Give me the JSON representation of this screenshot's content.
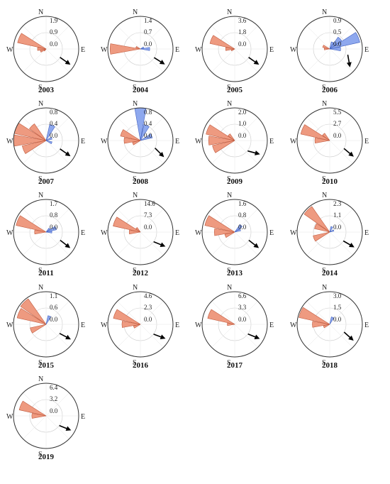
{
  "colors": {
    "west_petals": "#ee9a80",
    "west_stroke": "#c05a3e",
    "east_petals": "#8ea8ee",
    "east_stroke": "#4060c0",
    "arrow": "#000000",
    "circle": "#333333",
    "grid": "#cccccc"
  },
  "compass": {
    "n": "N",
    "s": "S",
    "e": "E",
    "w": "W"
  },
  "chart_data": [
    {
      "type": "polar-bar",
      "title": "2003",
      "r_ticks": [
        "1.9",
        "0.9",
        "0.0"
      ],
      "rmax": 1.9,
      "arrow_dir_deg": 125,
      "sectors": [
        {
          "dir": 292.5,
          "value": 1.7
        },
        {
          "dir": 270,
          "value": 0.5
        },
        {
          "dir": 247.5,
          "value": 0.35
        },
        {
          "dir": 225,
          "value": 0.15
        }
      ]
    },
    {
      "type": "polar-bar",
      "title": "2004",
      "r_ticks": [
        "1.4",
        "0.7",
        "0.0"
      ],
      "rmax": 1.4,
      "arrow_dir_deg": 122,
      "sectors": [
        {
          "dir": 270,
          "value": 1.3
        },
        {
          "dir": 292.5,
          "value": 0.2
        },
        {
          "dir": 90,
          "value": 0.4
        },
        {
          "dir": 67.5,
          "value": 0.15
        }
      ]
    },
    {
      "type": "polar-bar",
      "title": "2005",
      "r_ticks": [
        "3.6",
        "1.8",
        "0.0"
      ],
      "rmax": 3.6,
      "arrow_dir_deg": 125,
      "sectors": [
        {
          "dir": 292.5,
          "value": 2.8
        },
        {
          "dir": 270,
          "value": 1.0
        },
        {
          "dir": 247.5,
          "value": 0.4
        }
      ]
    },
    {
      "type": "polar-bar",
      "title": "2006",
      "r_ticks": [
        "0.9",
        "0.5",
        "0.0"
      ],
      "rmax": 0.9,
      "arrow_dir_deg": 170,
      "sectors": [
        {
          "dir": 67.5,
          "value": 0.85
        },
        {
          "dir": 45,
          "value": 0.4
        },
        {
          "dir": 22.5,
          "value": 0.2
        },
        {
          "dir": 90,
          "value": 0.3
        },
        {
          "dir": 292.5,
          "value": 0.2
        },
        {
          "dir": 270,
          "value": 0.15
        }
      ]
    },
    {
      "type": "polar-bar",
      "title": "2007",
      "r_ticks": [
        "0.8",
        "0.4",
        "0.0"
      ],
      "rmax": 0.8,
      "arrow_dir_deg": 125,
      "sectors": [
        {
          "dir": 292.5,
          "value": 0.8
        },
        {
          "dir": 270,
          "value": 0.8
        },
        {
          "dir": 247.5,
          "value": 0.6
        },
        {
          "dir": 315,
          "value": 0.5
        },
        {
          "dir": 22.5,
          "value": 0.4
        },
        {
          "dir": 67.5,
          "value": 0.15
        },
        {
          "dir": 112.5,
          "value": 0.15
        }
      ]
    },
    {
      "type": "polar-bar",
      "title": "2008",
      "r_ticks": [
        "0.8",
        "0.4",
        "0.0"
      ],
      "rmax": 0.8,
      "arrow_dir_deg": 135,
      "sectors": [
        {
          "dir": 0,
          "value": 0.85
        },
        {
          "dir": 22.5,
          "value": 0.4
        },
        {
          "dir": 67.5,
          "value": 0.3
        },
        {
          "dir": 292.5,
          "value": 0.5
        },
        {
          "dir": 270,
          "value": 0.4
        },
        {
          "dir": 247.5,
          "value": 0.2
        }
      ]
    },
    {
      "type": "polar-bar",
      "title": "2009",
      "r_ticks": [
        "2.0",
        "1.0",
        "0.0"
      ],
      "rmax": 2.0,
      "arrow_dir_deg": 105,
      "sectors": [
        {
          "dir": 292.5,
          "value": 1.8
        },
        {
          "dir": 270,
          "value": 1.6
        },
        {
          "dir": 247.5,
          "value": 1.4
        },
        {
          "dir": 315,
          "value": 0.5
        }
      ]
    },
    {
      "type": "polar-bar",
      "title": "2010",
      "r_ticks": [
        "5.5",
        "2.7",
        "0.0"
      ],
      "rmax": 5.5,
      "arrow_dir_deg": 130,
      "sectors": [
        {
          "dir": 292.5,
          "value": 5.0
        },
        {
          "dir": 270,
          "value": 2.5
        },
        {
          "dir": 315,
          "value": 1.5
        }
      ]
    },
    {
      "type": "polar-bar",
      "title": "2011",
      "r_ticks": [
        "1.7",
        "0.8",
        "0.0"
      ],
      "rmax": 1.7,
      "arrow_dir_deg": 128,
      "sectors": [
        {
          "dir": 292.5,
          "value": 1.6
        },
        {
          "dir": 270,
          "value": 0.6
        },
        {
          "dir": 67.5,
          "value": 0.55
        },
        {
          "dir": 45,
          "value": 0.25
        },
        {
          "dir": 90,
          "value": 0.3
        }
      ]
    },
    {
      "type": "polar-bar",
      "title": "2012",
      "r_ticks": [
        "14.6",
        "7.3",
        "0.0"
      ],
      "rmax": 14.6,
      "arrow_dir_deg": 112,
      "sectors": [
        {
          "dir": 292.5,
          "value": 12.5
        },
        {
          "dir": 270,
          "value": 5.0
        },
        {
          "dir": 315,
          "value": 2.5
        }
      ]
    },
    {
      "type": "polar-bar",
      "title": "2013",
      "r_ticks": [
        "1.6",
        "0.8",
        "0.0"
      ],
      "rmax": 1.6,
      "arrow_dir_deg": 128,
      "sectors": [
        {
          "dir": 292.5,
          "value": 1.5
        },
        {
          "dir": 270,
          "value": 1.0
        },
        {
          "dir": 247.5,
          "value": 0.5
        },
        {
          "dir": 45,
          "value": 0.45
        },
        {
          "dir": 67.5,
          "value": 0.3
        }
      ]
    },
    {
      "type": "polar-bar",
      "title": "2014",
      "r_ticks": [
        "2.3",
        "1.1",
        "0.0"
      ],
      "rmax": 2.3,
      "arrow_dir_deg": 120,
      "sectors": [
        {
          "dir": 315,
          "value": 2.2
        },
        {
          "dir": 292.5,
          "value": 1.1
        },
        {
          "dir": 247.5,
          "value": 1.2
        },
        {
          "dir": 22.5,
          "value": 0.4
        },
        {
          "dir": 67.5,
          "value": 0.3
        }
      ]
    },
    {
      "type": "polar-bar",
      "title": "2015",
      "r_ticks": [
        "1.1",
        "0.6",
        "0.0"
      ],
      "rmax": 1.1,
      "arrow_dir_deg": 118,
      "sectors": [
        {
          "dir": 315,
          "value": 1.05
        },
        {
          "dir": 292.5,
          "value": 1.0
        },
        {
          "dir": 247.5,
          "value": 0.55
        },
        {
          "dir": 22.5,
          "value": 0.3
        }
      ]
    },
    {
      "type": "polar-bar",
      "title": "2016",
      "r_ticks": [
        "4.6",
        "2.3",
        "0.0"
      ],
      "rmax": 4.6,
      "arrow_dir_deg": 110,
      "sectors": [
        {
          "dir": 292.5,
          "value": 3.9
        },
        {
          "dir": 270,
          "value": 2.6
        },
        {
          "dir": 247.5,
          "value": 1.0
        }
      ]
    },
    {
      "type": "polar-bar",
      "title": "2017",
      "r_ticks": [
        "6.6",
        "3.3",
        "0.0"
      ],
      "rmax": 6.6,
      "arrow_dir_deg": 112,
      "sectors": [
        {
          "dir": 292.5,
          "value": 5.6
        },
        {
          "dir": 270,
          "value": 1.5
        }
      ]
    },
    {
      "type": "polar-bar",
      "title": "2018",
      "r_ticks": [
        "3.0",
        "1.5",
        "0.0"
      ],
      "rmax": 3.0,
      "arrow_dir_deg": 132,
      "sectors": [
        {
          "dir": 292.5,
          "value": 2.9
        },
        {
          "dir": 270,
          "value": 1.6
        },
        {
          "dir": 247.5,
          "value": 0.6
        },
        {
          "dir": 22.5,
          "value": 0.7
        }
      ]
    },
    {
      "type": "polar-bar",
      "title": "2019",
      "r_ticks": [
        "6.4",
        "3.2",
        "0.0"
      ],
      "rmax": 6.4,
      "arrow_dir_deg": 112,
      "sectors": [
        {
          "dir": 292.5,
          "value": 5.4
        },
        {
          "dir": 270,
          "value": 2.8
        }
      ]
    }
  ]
}
